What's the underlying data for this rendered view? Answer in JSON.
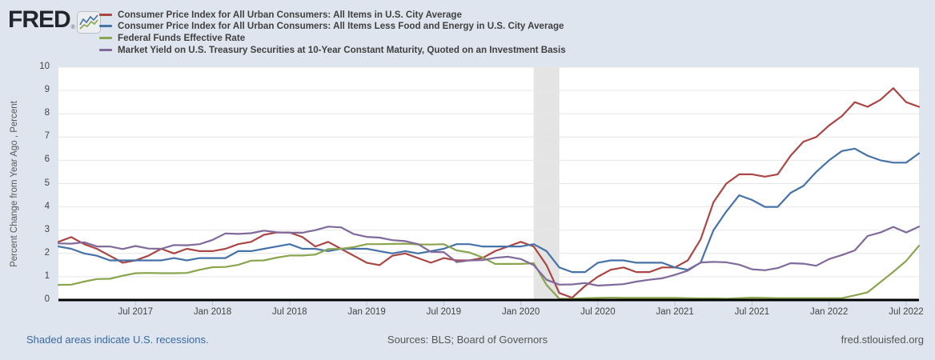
{
  "header": {
    "logo_text": "FRED",
    "logo_reg": "®",
    "legend": [
      {
        "slug": "cpi-all-items",
        "label": "Consumer Price Index for All Urban Consumers: All Items in U.S. City Average",
        "color": "#aa4643"
      },
      {
        "slug": "core-cpi",
        "label": "Consumer Price Index for All Urban Consumers: All Items Less Food and Energy in U.S. City Average",
        "color": "#4572a7"
      },
      {
        "slug": "fed-funds-rate",
        "label": "Federal Funds Effective Rate",
        "color": "#89a54e"
      },
      {
        "slug": "treasury-10y",
        "label": "Market Yield on U.S. Treasury Securities at 10-Year Constant Maturity, Quoted on an Investment Basis",
        "color": "#80699b"
      }
    ]
  },
  "footer": {
    "recession_note": "Shaded areas indicate U.S. recessions.",
    "sources": "Sources: BLS; Board of Governors",
    "site": "fred.stlouisfed.org"
  },
  "palette": {
    "page_bg": "#dee5ee",
    "plot_bg": "#ffffff",
    "grid": "#e6e6e6",
    "recession_band": "#e4e4e4",
    "axis_line": "#000000",
    "tick_mark": "#b3c3d6"
  },
  "chart_data": {
    "type": "line",
    "title": "",
    "ylabel": "Percent Change from Year Ago , Percent",
    "xlabel": "",
    "ylim": [
      0,
      10
    ],
    "y_ticks": [
      0,
      1,
      2,
      3,
      4,
      5,
      6,
      7,
      8,
      9,
      10
    ],
    "grid": true,
    "legend_position": "top-left",
    "x_start_month": "2017-01",
    "x_end_month": "2022-08",
    "x_ticks": [
      {
        "label": "Jul 2017",
        "index": 6
      },
      {
        "label": "Jan 2018",
        "index": 12
      },
      {
        "label": "Jul 2018",
        "index": 18
      },
      {
        "label": "Jan 2019",
        "index": 24
      },
      {
        "label": "Jul 2019",
        "index": 30
      },
      {
        "label": "Jan 2020",
        "index": 36
      },
      {
        "label": "Jul 2020",
        "index": 42
      },
      {
        "label": "Jan 2021",
        "index": 48
      },
      {
        "label": "Jul 2021",
        "index": 54
      },
      {
        "label": "Jan 2022",
        "index": 60
      },
      {
        "label": "Jul 2022",
        "index": 66
      }
    ],
    "recession_band": {
      "start_index": 37,
      "end_index": 39,
      "note": "Feb 2020 - Apr 2020"
    },
    "series": [
      {
        "slug": "cpi-all-items",
        "name": "Consumer Price Index for All Urban Consumers: All Items in U.S. City Average",
        "color": "#aa4643",
        "values": [
          2.5,
          2.7,
          2.4,
          2.2,
          1.9,
          1.6,
          1.7,
          1.9,
          2.2,
          2.0,
          2.2,
          2.1,
          2.1,
          2.2,
          2.4,
          2.5,
          2.8,
          2.9,
          2.9,
          2.7,
          2.3,
          2.5,
          2.2,
          1.9,
          1.6,
          1.5,
          1.9,
          2.0,
          1.8,
          1.6,
          1.8,
          1.7,
          1.7,
          1.8,
          2.1,
          2.3,
          2.5,
          2.3,
          1.5,
          0.3,
          0.1,
          0.6,
          1.0,
          1.3,
          1.4,
          1.2,
          1.2,
          1.4,
          1.4,
          1.7,
          2.6,
          4.2,
          5.0,
          5.4,
          5.4,
          5.3,
          5.4,
          6.2,
          6.8,
          7.0,
          7.5,
          7.9,
          8.5,
          8.3,
          8.6,
          9.1,
          8.5,
          8.3
        ]
      },
      {
        "slug": "core-cpi",
        "name": "Consumer Price Index for All Urban Consumers: All Items Less Food and Energy in U.S. City Average",
        "color": "#4572a7",
        "values": [
          2.3,
          2.2,
          2.0,
          1.9,
          1.7,
          1.7,
          1.7,
          1.7,
          1.7,
          1.8,
          1.7,
          1.8,
          1.8,
          1.8,
          2.1,
          2.1,
          2.2,
          2.3,
          2.4,
          2.2,
          2.2,
          2.1,
          2.2,
          2.2,
          2.2,
          2.1,
          2.0,
          2.1,
          2.0,
          2.1,
          2.2,
          2.4,
          2.4,
          2.3,
          2.3,
          2.3,
          2.3,
          2.4,
          2.1,
          1.4,
          1.2,
          1.2,
          1.6,
          1.7,
          1.7,
          1.6,
          1.6,
          1.6,
          1.4,
          1.3,
          1.6,
          3.0,
          3.8,
          4.5,
          4.3,
          4.0,
          4.0,
          4.6,
          4.9,
          5.5,
          6.0,
          6.4,
          6.5,
          6.2,
          6.0,
          5.9,
          5.9,
          6.3
        ]
      },
      {
        "slug": "fed-funds-rate",
        "name": "Federal Funds Effective Rate",
        "color": "#89a54e",
        "values": [
          0.65,
          0.66,
          0.79,
          0.9,
          0.91,
          1.04,
          1.15,
          1.16,
          1.15,
          1.15,
          1.16,
          1.3,
          1.41,
          1.42,
          1.51,
          1.69,
          1.7,
          1.82,
          1.91,
          1.91,
          1.95,
          2.19,
          2.2,
          2.27,
          2.4,
          2.4,
          2.41,
          2.42,
          2.39,
          2.38,
          2.4,
          2.13,
          2.04,
          1.83,
          1.55,
          1.55,
          1.55,
          1.58,
          0.65,
          0.05,
          0.05,
          0.08,
          0.09,
          0.1,
          0.09,
          0.09,
          0.09,
          0.09,
          0.09,
          0.08,
          0.07,
          0.07,
          0.06,
          0.08,
          0.1,
          0.09,
          0.08,
          0.08,
          0.08,
          0.08,
          0.08,
          0.08,
          0.2,
          0.33,
          0.77,
          1.21,
          1.68,
          2.33
        ]
      },
      {
        "slug": "treasury-10y",
        "name": "Market Yield on U.S. Treasury Securities at 10-Year Constant Maturity, Quoted on an Investment Basis",
        "color": "#80699b",
        "values": [
          2.43,
          2.42,
          2.48,
          2.3,
          2.3,
          2.19,
          2.32,
          2.21,
          2.2,
          2.36,
          2.35,
          2.4,
          2.58,
          2.86,
          2.84,
          2.87,
          2.98,
          2.91,
          2.89,
          2.89,
          3.0,
          3.15,
          3.12,
          2.83,
          2.71,
          2.68,
          2.57,
          2.53,
          2.4,
          2.07,
          2.06,
          1.63,
          1.7,
          1.71,
          1.81,
          1.86,
          1.76,
          1.5,
          0.87,
          0.66,
          0.67,
          0.73,
          0.62,
          0.65,
          0.68,
          0.79,
          0.87,
          0.93,
          1.08,
          1.26,
          1.61,
          1.64,
          1.62,
          1.52,
          1.32,
          1.28,
          1.37,
          1.58,
          1.56,
          1.47,
          1.76,
          1.93,
          2.13,
          2.75,
          2.9,
          3.14,
          2.9,
          3.15
        ]
      }
    ]
  }
}
